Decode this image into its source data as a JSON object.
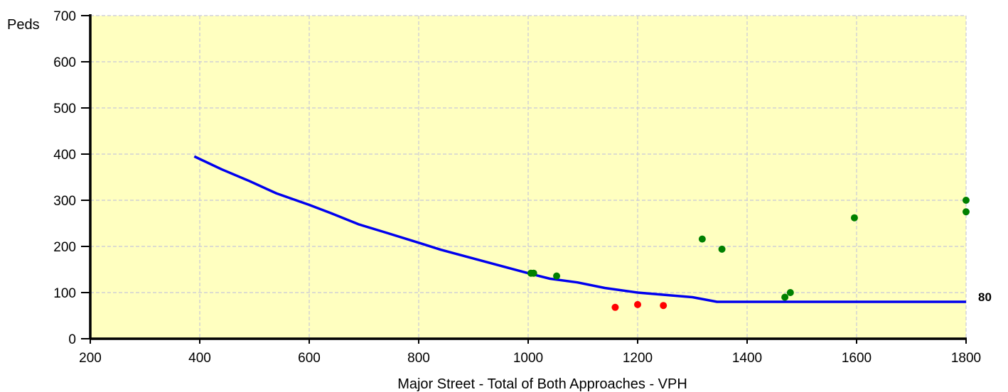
{
  "chart_data": {
    "type": "line",
    "ylabel": "Peds",
    "xlabel": "Major Street - Total of Both Approaches - VPH",
    "xlim": [
      200,
      1800
    ],
    "ylim": [
      0,
      700
    ],
    "x_ticks": [
      200,
      400,
      600,
      800,
      1000,
      1200,
      1400,
      1600,
      1800
    ],
    "y_ticks": [
      0,
      100,
      200,
      300,
      400,
      500,
      600,
      700
    ],
    "grid": true,
    "colors": {
      "plot_background": "#ffffc0",
      "curve": "#0000ee",
      "points_above": "#008000",
      "points_below": "#ff0000"
    },
    "threshold_curve": {
      "x": [
        390,
        440,
        490,
        540,
        600,
        640,
        690,
        740,
        800,
        840,
        890,
        940,
        1000,
        1040,
        1090,
        1140,
        1200,
        1250,
        1300,
        1345,
        1800
      ],
      "y": [
        395,
        367,
        342,
        315,
        290,
        272,
        248,
        230,
        208,
        193,
        177,
        161,
        142,
        130,
        122,
        110,
        100,
        95,
        90,
        80,
        80
      ],
      "end_label": "80"
    },
    "points_above": {
      "x": [
        1005,
        1010,
        1052,
        1318,
        1354,
        1469,
        1479,
        1596,
        1800,
        1800
      ],
      "y": [
        142,
        142,
        136,
        216,
        194,
        90,
        100,
        262,
        300,
        275
      ]
    },
    "points_below": {
      "x": [
        1159,
        1200,
        1247
      ],
      "y": [
        68,
        74,
        72
      ]
    }
  }
}
